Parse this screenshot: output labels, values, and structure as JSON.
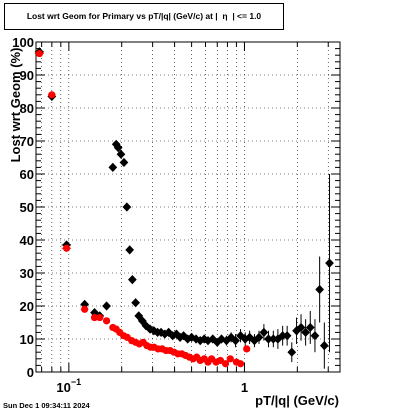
{
  "title": "Lost wrt Geom for Primary vs pT/|q| (GeV/c) at |  η  | <= 1.0",
  "timestamp": "Sun Dec  1 09:34:11 2024",
  "colors": {
    "black_series": "#000000",
    "red_series": "#ff0000",
    "grid": "#000000"
  },
  "chart_data": {
    "type": "scatter",
    "title": "Lost wrt Geom for Primary vs pT/|q| (GeV/c) at |  η  | <= 1.0",
    "xlabel": "pT/|q| (GeV/c)",
    "ylabel": "Lost wrt Geom (%)",
    "xscale": "log",
    "xlim": [
      0.065,
      3.5
    ],
    "ylim": [
      0,
      100
    ],
    "grid": true,
    "y_ticks": [
      0,
      10,
      20,
      30,
      40,
      50,
      60,
      70,
      80,
      90,
      100
    ],
    "x_tick_labels": [
      {
        "value": 0.1,
        "base": "10",
        "exp": "−1"
      },
      {
        "value": 1,
        "text": "1"
      }
    ],
    "series": [
      {
        "color": "#000000",
        "marker": "diamond",
        "points": [
          {
            "x": 0.068,
            "y": 97,
            "ex": 0.004
          },
          {
            "x": 0.08,
            "y": 83.5,
            "ex": 0.004
          },
          {
            "x": 0.097,
            "y": 38.5,
            "ex": 0.006
          },
          {
            "x": 0.123,
            "y": 20.5,
            "ex": 0.006
          },
          {
            "x": 0.14,
            "y": 18,
            "ex": 0.005
          },
          {
            "x": 0.15,
            "y": 17
          },
          {
            "x": 0.164,
            "y": 20
          },
          {
            "x": 0.178,
            "y": 62
          },
          {
            "x": 0.186,
            "y": 69
          },
          {
            "x": 0.191,
            "y": 68
          },
          {
            "x": 0.198,
            "y": 66
          },
          {
            "x": 0.206,
            "y": 63.5
          },
          {
            "x": 0.214,
            "y": 50
          },
          {
            "x": 0.222,
            "y": 37
          },
          {
            "x": 0.23,
            "y": 28
          },
          {
            "x": 0.24,
            "y": 21
          },
          {
            "x": 0.25,
            "y": 17
          },
          {
            "x": 0.262,
            "y": 15.5
          },
          {
            "x": 0.275,
            "y": 14
          },
          {
            "x": 0.29,
            "y": 13
          },
          {
            "x": 0.305,
            "y": 12.5
          },
          {
            "x": 0.32,
            "y": 12
          },
          {
            "x": 0.335,
            "y": 12
          },
          {
            "x": 0.352,
            "y": 11.5
          },
          {
            "x": 0.37,
            "y": 12
          },
          {
            "x": 0.39,
            "y": 11
          },
          {
            "x": 0.41,
            "y": 11.5
          },
          {
            "x": 0.43,
            "y": 10.5
          },
          {
            "x": 0.45,
            "y": 11
          },
          {
            "x": 0.475,
            "y": 10
          },
          {
            "x": 0.5,
            "y": 10.5
          },
          {
            "x": 0.53,
            "y": 10
          },
          {
            "x": 0.56,
            "y": 9.5
          },
          {
            "x": 0.59,
            "y": 10
          },
          {
            "x": 0.62,
            "y": 9.5
          },
          {
            "x": 0.66,
            "y": 10
          },
          {
            "x": 0.7,
            "y": 9
          },
          {
            "x": 0.74,
            "y": 10
          },
          {
            "x": 0.79,
            "y": 9.5,
            "ey": 1.5
          },
          {
            "x": 0.84,
            "y": 10.5,
            "ey": 1.5
          },
          {
            "x": 0.89,
            "y": 9.5,
            "ey": 2
          },
          {
            "x": 0.95,
            "y": 11,
            "ey": 2
          },
          {
            "x": 1.01,
            "y": 10,
            "ey": 2
          },
          {
            "x": 1.07,
            "y": 10.5,
            "ey": 2
          },
          {
            "x": 1.14,
            "y": 9.5,
            "ey": 2
          },
          {
            "x": 1.21,
            "y": 10.5,
            "ey": 2
          },
          {
            "x": 1.29,
            "y": 12,
            "ey": 2.5
          },
          {
            "x": 1.37,
            "y": 10,
            "ey": 2.5
          },
          {
            "x": 1.46,
            "y": 10,
            "ey": 2.5
          },
          {
            "x": 1.55,
            "y": 10,
            "ey": 3
          },
          {
            "x": 1.65,
            "y": 11,
            "ey": 3
          },
          {
            "x": 1.75,
            "y": 11,
            "ey": 3
          },
          {
            "x": 1.86,
            "y": 6,
            "ey": 3
          },
          {
            "x": 1.98,
            "y": 12.5,
            "ey": 4
          },
          {
            "x": 2.1,
            "y": 13.5,
            "ey": 4
          },
          {
            "x": 2.23,
            "y": 12,
            "ey": 4
          },
          {
            "x": 2.37,
            "y": 13.5,
            "ey": 5
          },
          {
            "x": 2.52,
            "y": 11,
            "ey": 5
          },
          {
            "x": 2.68,
            "y": 25,
            "ey": 10
          },
          {
            "x": 2.85,
            "y": 8,
            "ey": 7
          },
          {
            "x": 3.05,
            "y": 33,
            "ey": 27
          }
        ]
      },
      {
        "color": "#ff0000",
        "marker": "circle",
        "points": [
          {
            "x": 0.068,
            "y": 96.5,
            "ex": 0.004
          },
          {
            "x": 0.08,
            "y": 84,
            "ex": 0.004
          },
          {
            "x": 0.097,
            "y": 37.5,
            "ex": 0.006
          },
          {
            "x": 0.123,
            "y": 19,
            "ex": 0.006
          },
          {
            "x": 0.14,
            "y": 16.5
          },
          {
            "x": 0.15,
            "y": 16.5
          },
          {
            "x": 0.164,
            "y": 15.5
          },
          {
            "x": 0.178,
            "y": 13.5
          },
          {
            "x": 0.186,
            "y": 13
          },
          {
            "x": 0.195,
            "y": 12
          },
          {
            "x": 0.205,
            "y": 11
          },
          {
            "x": 0.215,
            "y": 10.5
          },
          {
            "x": 0.228,
            "y": 9.5
          },
          {
            "x": 0.24,
            "y": 9
          },
          {
            "x": 0.252,
            "y": 8.5
          },
          {
            "x": 0.265,
            "y": 9
          },
          {
            "x": 0.278,
            "y": 8
          },
          {
            "x": 0.292,
            "y": 7.5
          },
          {
            "x": 0.306,
            "y": 7.5
          },
          {
            "x": 0.322,
            "y": 7
          },
          {
            "x": 0.34,
            "y": 7
          },
          {
            "x": 0.358,
            "y": 6.5
          },
          {
            "x": 0.377,
            "y": 6.5
          },
          {
            "x": 0.397,
            "y": 6
          },
          {
            "x": 0.418,
            "y": 5.5
          },
          {
            "x": 0.44,
            "y": 5.5
          },
          {
            "x": 0.462,
            "y": 5
          },
          {
            "x": 0.486,
            "y": 4.5
          },
          {
            "x": 0.51,
            "y": 4
          },
          {
            "x": 0.535,
            "y": 4.5
          },
          {
            "x": 0.56,
            "y": 3.5
          },
          {
            "x": 0.59,
            "y": 4
          },
          {
            "x": 0.62,
            "y": 3
          },
          {
            "x": 0.65,
            "y": 4
          },
          {
            "x": 0.69,
            "y": 3
          },
          {
            "x": 0.73,
            "y": 3.5
          },
          {
            "x": 0.78,
            "y": 2.5
          },
          {
            "x": 0.83,
            "y": 4
          },
          {
            "x": 0.9,
            "y": 3
          },
          {
            "x": 0.95,
            "y": 2.5
          },
          {
            "x": 1.03,
            "y": 7
          }
        ]
      }
    ]
  }
}
